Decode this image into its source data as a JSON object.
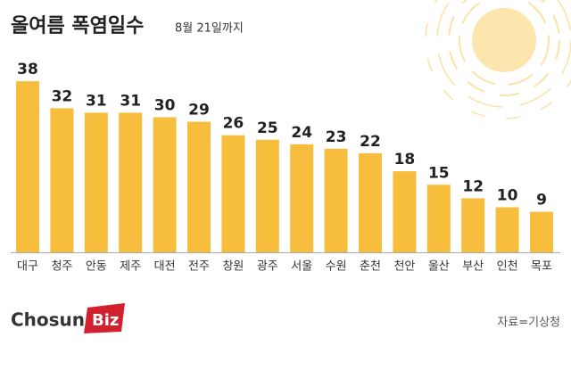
{
  "chart_data": {
    "type": "bar",
    "title": "올여름 폭염일수",
    "subtitle": "8월 21일까지",
    "categories": [
      "대구",
      "청주",
      "안동",
      "제주",
      "대전",
      "전주",
      "창원",
      "광주",
      "서울",
      "수원",
      "춘천",
      "천안",
      "울산",
      "부산",
      "인천",
      "목포"
    ],
    "values": [
      38,
      32,
      31,
      31,
      30,
      29,
      26,
      25,
      24,
      23,
      22,
      18,
      15,
      12,
      10,
      9
    ],
    "color": "#f7bd3c",
    "source": "자료=기상청",
    "brand": [
      "Chosun",
      "Biz"
    ]
  }
}
